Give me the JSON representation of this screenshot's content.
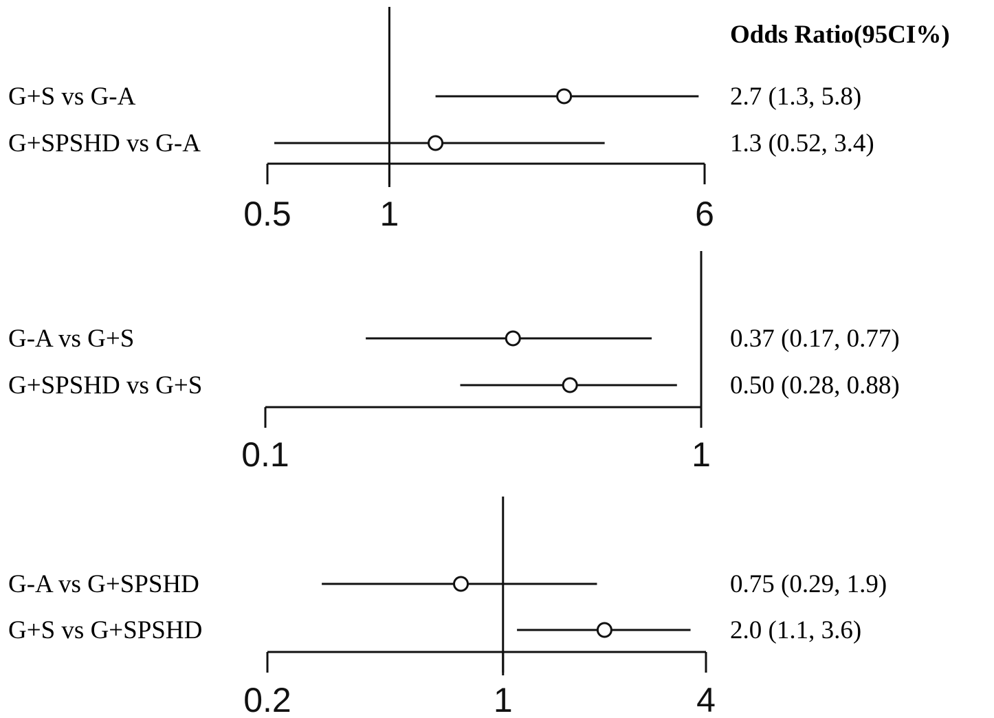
{
  "header": "Odds Ratio(95CI%)",
  "chart_data": [
    {
      "type": "forest",
      "x_scale": "log",
      "reference_value": 1,
      "ticks": [
        0.5,
        1,
        6
      ],
      "tick_labels": [
        "0.5",
        "1",
        "6"
      ],
      "xlim": [
        0.5,
        6
      ],
      "rows": [
        {
          "label": "G+S vs G-A",
          "estimate": 2.7,
          "lower": 1.3,
          "upper": 5.8,
          "text": "2.7 (1.3, 5.8)"
        },
        {
          "label": "G+SPSHD vs G-A",
          "estimate": 1.3,
          "lower": 0.52,
          "upper": 3.4,
          "text": "1.3 (0.52, 3.4)"
        }
      ]
    },
    {
      "type": "forest",
      "x_scale": "log",
      "reference_value": 1,
      "ticks": [
        0.1,
        1
      ],
      "tick_labels": [
        "0.1",
        "1"
      ],
      "xlim": [
        0.1,
        1
      ],
      "rows": [
        {
          "label": "G-A vs G+S",
          "estimate": 0.37,
          "lower": 0.17,
          "upper": 0.77,
          "text": "0.37 (0.17, 0.77)"
        },
        {
          "label": "G+SPSHD vs G+S",
          "estimate": 0.5,
          "lower": 0.28,
          "upper": 0.88,
          "text": "0.50 (0.28, 0.88)"
        }
      ]
    },
    {
      "type": "forest",
      "x_scale": "log",
      "reference_value": 1,
      "ticks": [
        0.2,
        1,
        4
      ],
      "tick_labels": [
        "0.2",
        "1",
        "4"
      ],
      "xlim": [
        0.2,
        4
      ],
      "rows": [
        {
          "label": "G-A vs G+SPSHD",
          "estimate": 0.75,
          "lower": 0.29,
          "upper": 1.9,
          "text": "0.75 (0.29, 1.9)"
        },
        {
          "label": "G+S vs G+SPSHD",
          "estimate": 2.0,
          "lower": 1.1,
          "upper": 3.6,
          "text": "2.0 (1.1, 3.6)"
        }
      ]
    }
  ]
}
